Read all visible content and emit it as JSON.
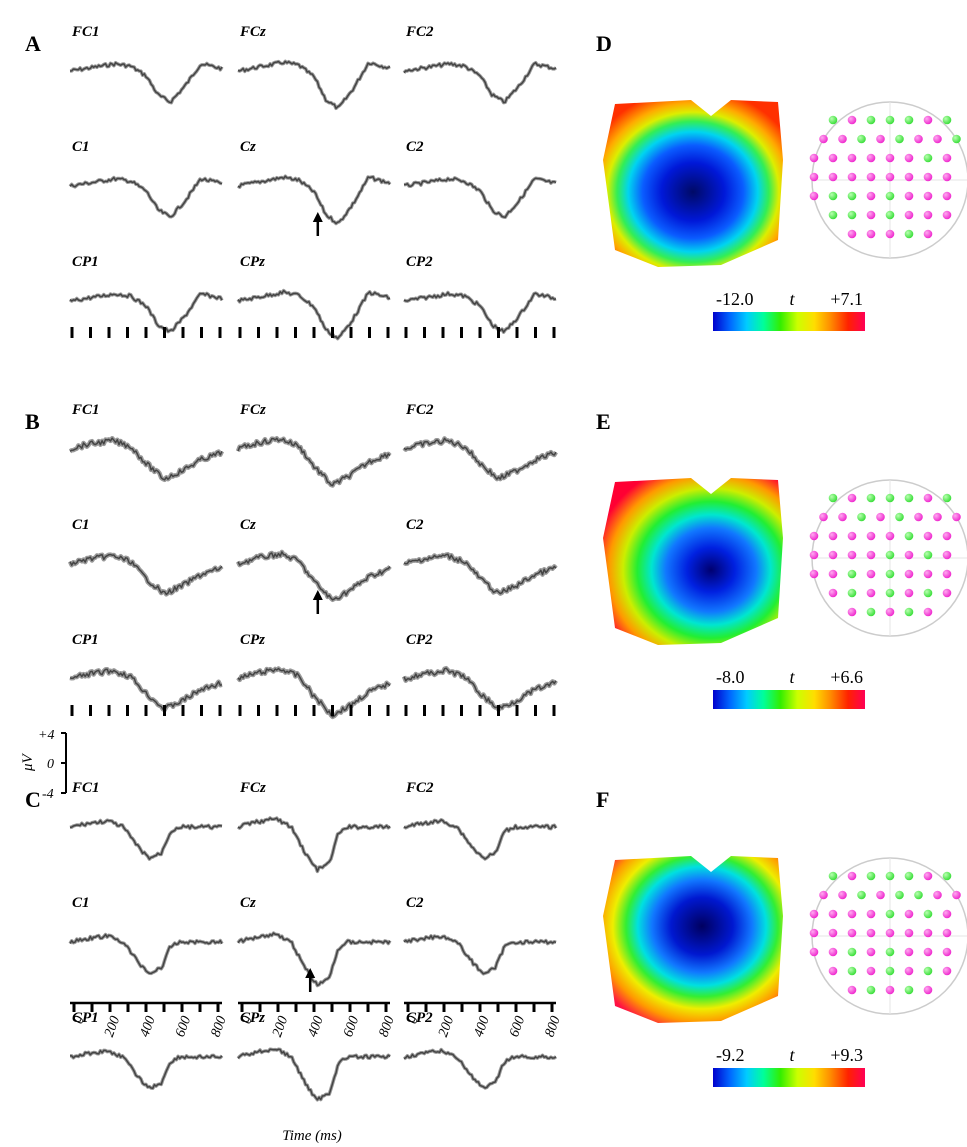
{
  "erp_panels": [
    {
      "letter": "A",
      "channels": [
        [
          "FC1",
          "FCz",
          "FC2"
        ],
        [
          "C1",
          "Cz",
          "C2"
        ],
        [
          "CP1",
          "CPz",
          "CP2"
        ]
      ],
      "peak_ms": 420
    },
    {
      "letter": "B",
      "channels": [
        [
          "FC1",
          "FCz",
          "FC2"
        ],
        [
          "C1",
          "Cz",
          "C2"
        ],
        [
          "CP1",
          "CPz",
          "CP2"
        ]
      ],
      "peak_ms": 420
    },
    {
      "letter": "C",
      "channels": [
        [
          "FC1",
          "FCz",
          "FC2"
        ],
        [
          "C1",
          "Cz",
          "C2"
        ],
        [
          "CP1",
          "CPz",
          "CP2"
        ]
      ],
      "peak_ms": 380
    }
  ],
  "maps": [
    {
      "letter": "D",
      "min": "-12.0",
      "stat": "t",
      "max": "+7.1"
    },
    {
      "letter": "E",
      "min": "-8.0",
      "stat": "t",
      "max": "+6.6"
    },
    {
      "letter": "F",
      "min": "-9.2",
      "stat": "t",
      "max": "+9.3"
    }
  ],
  "voltage_axis": {
    "label": "μV",
    "top": "+4",
    "zero": "0",
    "bottom": "-4"
  },
  "time_axis": {
    "title": "Time (ms)",
    "ticks": [
      "0",
      "200",
      "400",
      "600",
      "800"
    ]
  },
  "colors": {
    "trace": "#444444",
    "arrow": "#000000",
    "electrode_pos": "#ee22cc",
    "electrode_neg": "#33dd33"
  },
  "colorbar_stops": [
    "#0000cc",
    "#0066ff",
    "#00ccff",
    "#00ff99",
    "#33ee00",
    "#ccff00",
    "#ffdd00",
    "#ff8800",
    "#ff2200",
    "#ff0055"
  ]
}
